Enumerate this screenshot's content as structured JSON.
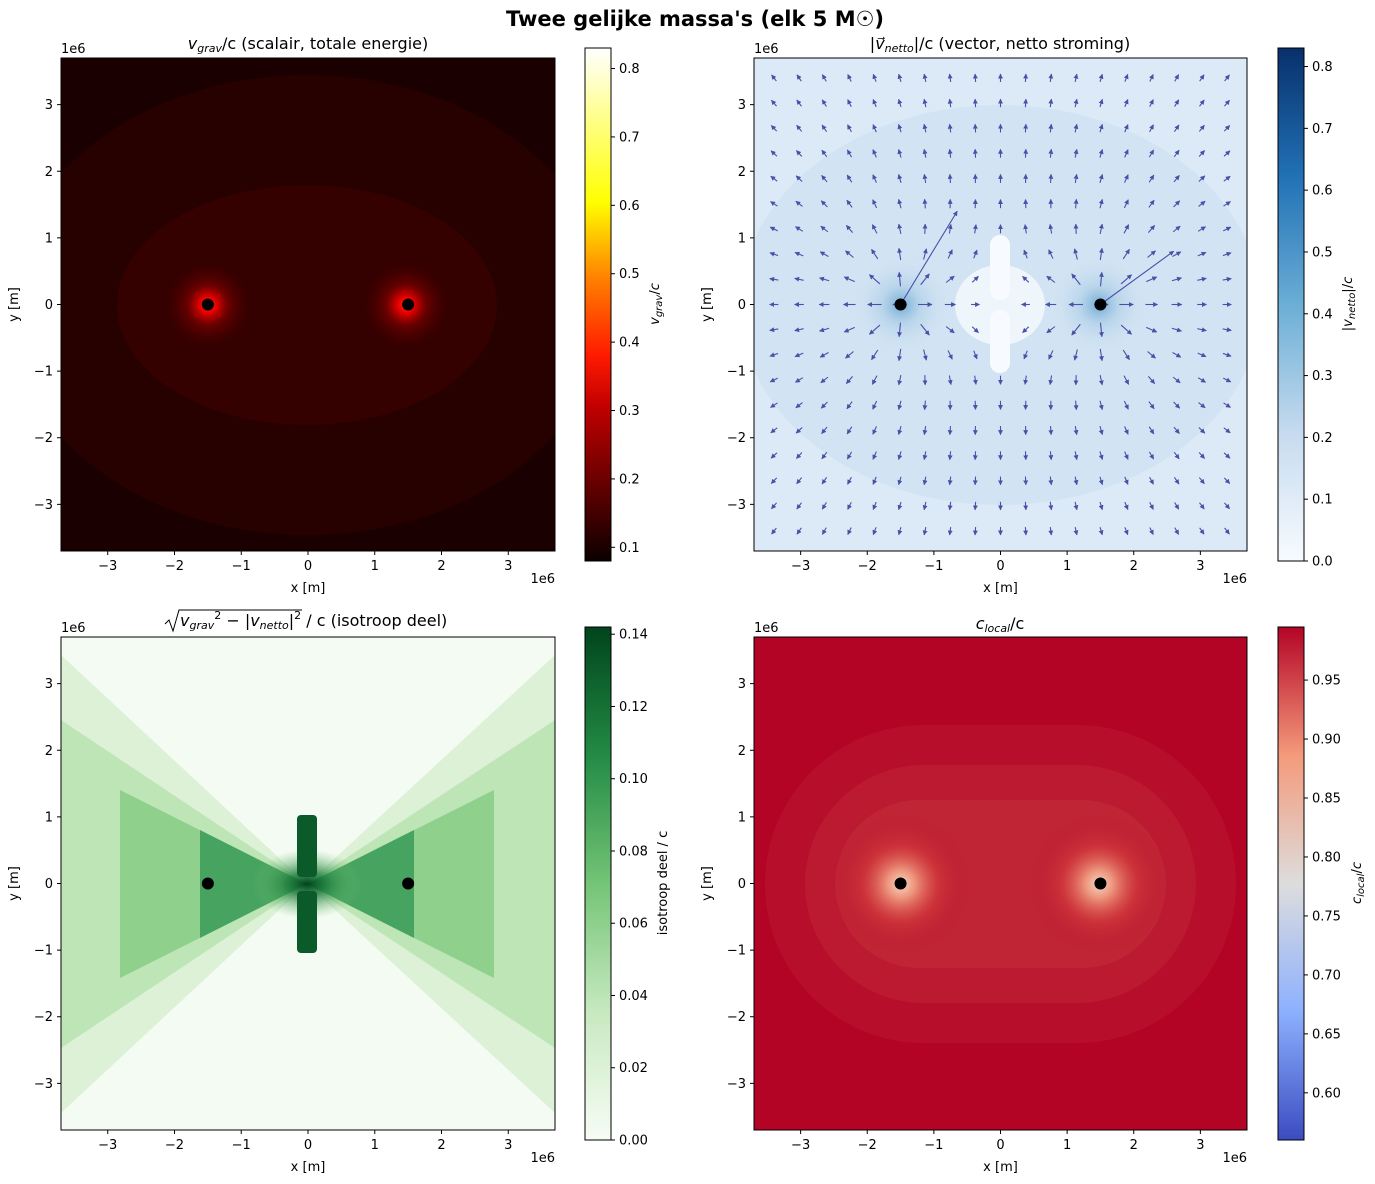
{
  "figure_title": "Twee gelijke massa's (elk 5 M☉)",
  "colors": {
    "mass_marker": "#000000",
    "quiver_arrows": "#4a4fa8"
  },
  "chart_data": [
    {
      "type": "heatmap",
      "title": "v_grav/c (scalair, totale energie)",
      "title_parts": {
        "var": "v",
        "sub": "grav",
        "rest": "/c (scalair, totale energie)"
      },
      "xlabel": "x [m]",
      "ylabel": "y [m]",
      "x_offset_label": "1e6",
      "y_offset_label": "1e6",
      "xlim": [
        -3.7,
        3.7
      ],
      "ylim": [
        -3.7,
        3.7
      ],
      "xticks": [
        -3,
        -2,
        -1,
        0,
        1,
        2,
        3
      ],
      "yticks": [
        -3,
        -2,
        -1,
        0,
        1,
        2,
        3
      ],
      "tick_labels": [
        "−3",
        "−2",
        "−1",
        "0",
        "1",
        "2",
        "3"
      ],
      "colormap": "hot",
      "colorbar": {
        "label": "v_grav/c",
        "min": 0.08,
        "max": 0.83,
        "ticks": [
          0.1,
          0.2,
          0.3,
          0.4,
          0.5,
          0.6,
          0.7,
          0.8
        ],
        "tick_labels": [
          "0.1",
          "0.2",
          "0.3",
          "0.4",
          "0.5",
          "0.6",
          "0.7",
          "0.8"
        ]
      },
      "masses": [
        {
          "x": -1.5,
          "y": 0
        },
        {
          "x": 1.5,
          "y": 0
        }
      ]
    },
    {
      "type": "heatmap",
      "title": "|v⃗_netto|/c (vector, netto stroming)",
      "title_parts": {
        "var": "v⃗",
        "sub": "netto",
        "rest": "|/c (vector, netto stroming)"
      },
      "xlabel": "x [m]",
      "ylabel": "y [m]",
      "x_offset_label": "1e6",
      "y_offset_label": "1e6",
      "xlim": [
        -3.7,
        3.7
      ],
      "ylim": [
        -3.7,
        3.7
      ],
      "xticks": [
        -3,
        -2,
        -1,
        0,
        1,
        2,
        3
      ],
      "yticks": [
        -3,
        -2,
        -1,
        0,
        1,
        2,
        3
      ],
      "tick_labels": [
        "−3",
        "−2",
        "−1",
        "0",
        "1",
        "2",
        "3"
      ],
      "colormap": "Blues",
      "overlay": "quiver",
      "colorbar": {
        "label": "|v_netto|/c",
        "min": 0.0,
        "max": 0.83,
        "ticks": [
          0.0,
          0.1,
          0.2,
          0.3,
          0.4,
          0.5,
          0.6,
          0.7,
          0.8
        ],
        "tick_labels": [
          "0.0",
          "0.1",
          "0.2",
          "0.3",
          "0.4",
          "0.5",
          "0.6",
          "0.7",
          "0.8"
        ]
      },
      "masses": [
        {
          "x": -1.5,
          "y": 0
        },
        {
          "x": 1.5,
          "y": 0
        }
      ]
    },
    {
      "type": "heatmap",
      "title": "√(v_grav² − |v_netto|²) / c (isotroop deel)",
      "title_parts": {
        "rest": " / c (isotroop deel)"
      },
      "xlabel": "x [m]",
      "ylabel": "y [m]",
      "x_offset_label": "1e6",
      "y_offset_label": "1e6",
      "xlim": [
        -3.7,
        3.7
      ],
      "ylim": [
        -3.7,
        3.7
      ],
      "xticks": [
        -3,
        -2,
        -1,
        0,
        1,
        2,
        3
      ],
      "yticks": [
        -3,
        -2,
        -1,
        0,
        1,
        2,
        3
      ],
      "tick_labels": [
        "−3",
        "−2",
        "−1",
        "0",
        "1",
        "2",
        "3"
      ],
      "colormap": "Greens",
      "colorbar": {
        "label": "isotroop deel / c",
        "min": 0.0,
        "max": 0.142,
        "ticks": [
          0.0,
          0.02,
          0.04,
          0.06,
          0.08,
          0.1,
          0.12,
          0.14
        ],
        "tick_labels": [
          "0.00",
          "0.02",
          "0.04",
          "0.06",
          "0.08",
          "0.10",
          "0.12",
          "0.14"
        ]
      },
      "masses": [
        {
          "x": -1.5,
          "y": 0
        },
        {
          "x": 1.5,
          "y": 0
        }
      ]
    },
    {
      "type": "heatmap",
      "title": "c_local/c",
      "title_parts": {
        "var": "c",
        "sub": "local",
        "rest": "/c"
      },
      "xlabel": "x [m]",
      "ylabel": "y [m]",
      "x_offset_label": "1e6",
      "y_offset_label": "1e6",
      "xlim": [
        -3.7,
        3.7
      ],
      "ylim": [
        -3.7,
        3.7
      ],
      "xticks": [
        -3,
        -2,
        -1,
        0,
        1,
        2,
        3
      ],
      "yticks": [
        -3,
        -2,
        -1,
        0,
        1,
        2,
        3
      ],
      "tick_labels": [
        "−3",
        "−2",
        "−1",
        "0",
        "1",
        "2",
        "3"
      ],
      "colormap": "coolwarm",
      "colorbar": {
        "label": "c_local/c",
        "min": 0.56,
        "max": 0.995,
        "ticks": [
          0.6,
          0.65,
          0.7,
          0.75,
          0.8,
          0.85,
          0.9,
          0.95
        ],
        "tick_labels": [
          "0.60",
          "0.65",
          "0.70",
          "0.75",
          "0.80",
          "0.85",
          "0.90",
          "0.95"
        ]
      },
      "masses": [
        {
          "x": -1.5,
          "y": 0
        },
        {
          "x": 1.5,
          "y": 0
        }
      ]
    }
  ]
}
